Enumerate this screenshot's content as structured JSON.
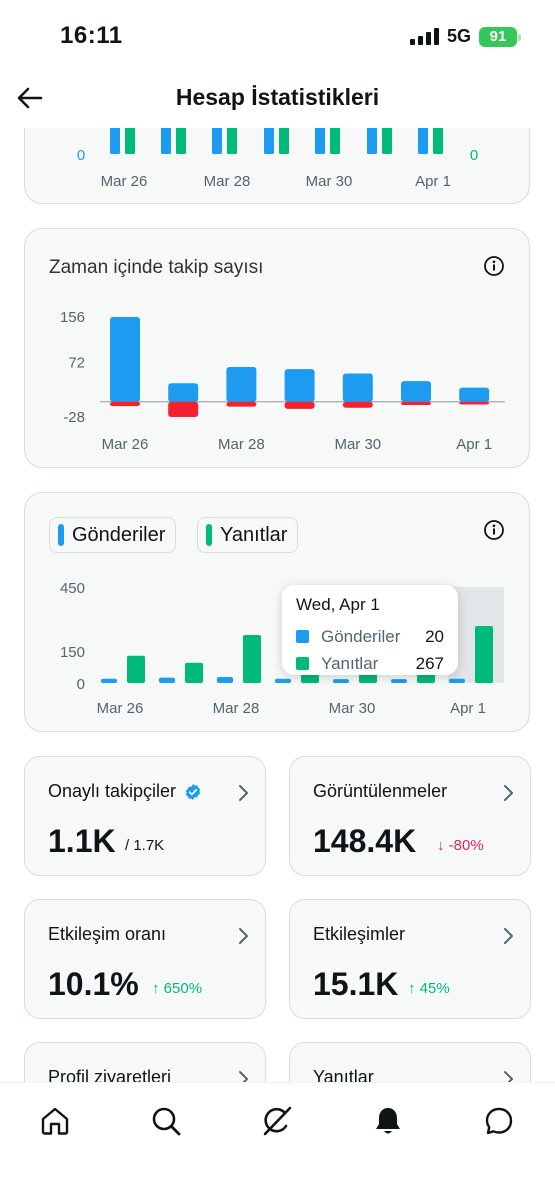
{
  "status": {
    "time": "16:11",
    "network": "5G",
    "battery": "91"
  },
  "header": {
    "title": "Hesap İstatistikleri"
  },
  "chart_top": {
    "y_left": "0",
    "y_right": "0",
    "ticks": [
      "Mar 26",
      "Mar 28",
      "Mar 30",
      "Apr 1"
    ]
  },
  "chart_data": [
    {
      "type": "bar",
      "title": "Zaman içinde takip sayısı",
      "categories": [
        "Mar 26",
        "Mar 27",
        "Mar 28",
        "Mar 29",
        "Mar 30",
        "Mar 31",
        "Apr 1"
      ],
      "x_tick_labels": [
        "Mar 26",
        "Mar 28",
        "Mar 30",
        "Apr 1"
      ],
      "series": [
        {
          "values": [
            156,
            34,
            64,
            60,
            52,
            38,
            26
          ],
          "color": "#1d9bf0"
        },
        {
          "values": [
            -8,
            -28,
            -9,
            -13,
            -11,
            -6,
            -5
          ],
          "color": "#f4212e"
        }
      ],
      "y_ticks": [
        "156",
        "72",
        "-28"
      ],
      "ylim": [
        -28,
        156
      ]
    },
    {
      "type": "bar",
      "categories": [
        "Mar 26",
        "Mar 27",
        "Mar 28",
        "Mar 29",
        "Mar 30",
        "Mar 31",
        "Apr 1"
      ],
      "x_tick_labels": [
        "Mar 26",
        "Mar 28",
        "Mar 30",
        "Apr 1"
      ],
      "series": [
        {
          "name": "Gönderiler",
          "values": [
            20,
            25,
            28,
            20,
            18,
            18,
            20
          ],
          "color": "#1d9bf0"
        },
        {
          "name": "Yanıtlar",
          "values": [
            128,
            95,
            225,
            60,
            55,
            60,
            267
          ],
          "color": "#00ba7c"
        }
      ],
      "y_ticks": [
        "450",
        "150",
        "0"
      ],
      "ylim": [
        0,
        450
      ],
      "tooltip": {
        "date": "Wed, Apr 1",
        "rows": [
          {
            "name": "Gönderiler",
            "value": "20",
            "color": "#1d9bf0"
          },
          {
            "name": "Yanıtlar",
            "value": "267",
            "color": "#00ba7c"
          }
        ]
      }
    }
  ],
  "stats": [
    {
      "label": "Onaylı takipçiler",
      "value": "1.1K",
      "sub": "/ 1.7K",
      "sub_color": "#0f1419",
      "verified": true
    },
    {
      "label": "Görüntülenmeler",
      "value": "148.4K",
      "sub": "↓ -80%",
      "sub_color": "#e0245e"
    },
    {
      "label": "Etkileşim oranı",
      "value": "10.1%",
      "sub": "↑ 650%",
      "sub_color": "#00ba7c"
    },
    {
      "label": "Etkileşimler",
      "value": "15.1K",
      "sub": "↑ 45%",
      "sub_color": "#00ba7c"
    },
    {
      "label": "Profil ziyaretleri"
    },
    {
      "label": "Yanıtlar"
    }
  ],
  "icons": [
    "home-icon",
    "search-icon",
    "grok-icon",
    "notifications-icon",
    "messages-icon"
  ]
}
